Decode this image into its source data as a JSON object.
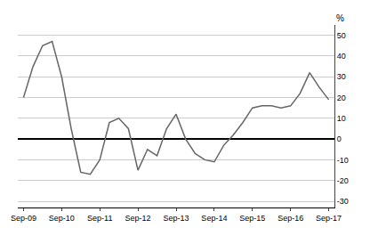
{
  "chart_data": {
    "type": "line",
    "ylabel": "%",
    "x": [
      0.0,
      0.25,
      0.5,
      0.75,
      1.0,
      1.25,
      1.5,
      1.75,
      2.0,
      2.25,
      2.5,
      2.75,
      3.0,
      3.25,
      3.5,
      3.75,
      4.0,
      4.25,
      4.5,
      4.75,
      5.0,
      5.25,
      5.5,
      5.75,
      6.0,
      6.25,
      6.5,
      6.75,
      7.0,
      7.25,
      7.5,
      7.75,
      8.0
    ],
    "values": [
      20,
      35,
      45,
      47,
      30,
      5,
      -16,
      -17,
      -10,
      8,
      10,
      5,
      -15,
      -5,
      -8,
      5,
      12,
      0,
      -7,
      -10,
      -11,
      -3,
      2,
      8,
      15,
      16,
      16,
      15,
      16,
      22,
      32,
      25,
      19
    ],
    "color": "#666666",
    "xlim": [
      -0.15,
      8.15
    ],
    "xticks": [
      {
        "value": 0,
        "label": "Sep-09"
      },
      {
        "value": 1,
        "label": "Sep-10"
      },
      {
        "value": 2,
        "label": "Sep-11"
      },
      {
        "value": 3,
        "label": "Sep-12"
      },
      {
        "value": 4,
        "label": "Sep-13"
      },
      {
        "value": 5,
        "label": "Sep-14"
      },
      {
        "value": 6,
        "label": "Sep-15"
      },
      {
        "value": 7,
        "label": "Sep-16"
      },
      {
        "value": 8,
        "label": "Sep-17"
      }
    ],
    "ylim": [
      -33,
      55
    ],
    "yticks": [
      -30,
      -20,
      -10,
      0,
      10,
      20,
      30,
      40,
      50
    ],
    "grid": true
  }
}
